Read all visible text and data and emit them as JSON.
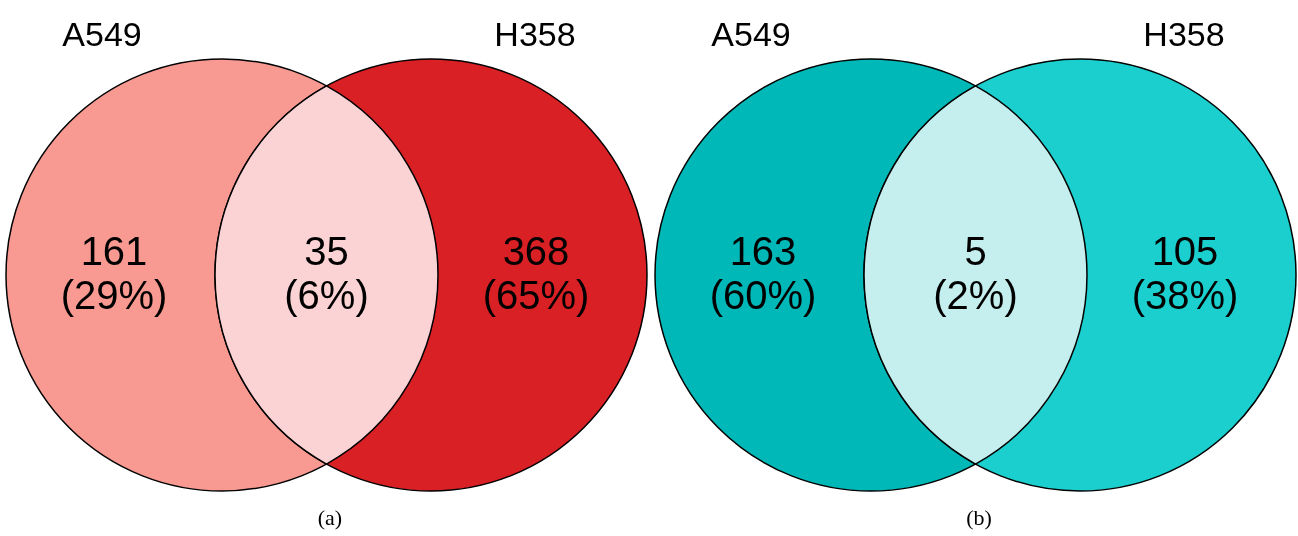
{
  "chart_data": [
    {
      "type": "other",
      "categories": [
        "A549",
        null,
        "H358"
      ],
      "values": [
        161,
        35,
        368
      ],
      "value_labels": [
        "161\n(29%)",
        "35\n(6%)",
        "368\n(65%)"
      ],
      "colors": [
        "#f99a92",
        "#fbd3d4",
        "#d92025"
      ],
      "annotations": [
        "(a)"
      ]
    },
    {
      "type": "other",
      "categories": [
        "A549",
        null,
        "H358"
      ],
      "values": [
        163,
        5,
        105
      ],
      "value_labels": [
        "163\n(60%)",
        "5\n(2%)",
        "105\n(38%)"
      ],
      "colors": [
        "#00b8b8",
        "#c5eeee",
        "#1ccfcf"
      ],
      "annotations": [
        "(b)"
      ]
    }
  ]
}
